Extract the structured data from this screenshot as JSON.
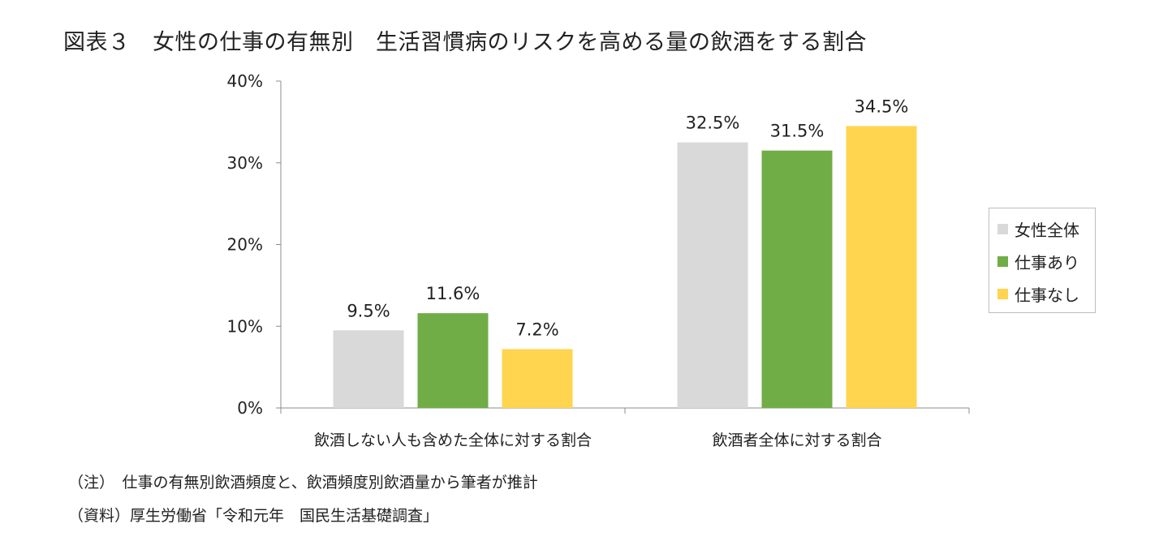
{
  "title": "図表３　女性の仕事の有無別　生活習慣病のリスクを高める量の飲酒をする割合",
  "notes": {
    "note": "（注）　仕事の有無別飲酒頻度と、飲酒頻度別飲酒量から筆者が推計",
    "source": "（資料）厚生労働省「令和元年　国民生活基礎調査」"
  },
  "colors": {
    "all_women": "#d9d9d9",
    "working": "#70ad47",
    "not_working": "#ffd44f",
    "axis": "#8c8c8c"
  },
  "chart_data": {
    "type": "bar",
    "categories": [
      "飲酒しない人も含めた全体に対する割合",
      "飲酒者全体に対する割合"
    ],
    "series": [
      {
        "name": "女性全体",
        "values": [
          9.5,
          32.5
        ],
        "value_labels": [
          "9.5%",
          "32.5%"
        ]
      },
      {
        "name": "仕事あり",
        "values": [
          11.6,
          31.5
        ],
        "value_labels": [
          "11.6%",
          "31.5%"
        ]
      },
      {
        "name": "仕事なし",
        "values": [
          7.2,
          34.5
        ],
        "value_labels": [
          "7.2%",
          "34.5%"
        ]
      }
    ],
    "ylim": [
      0,
      40
    ],
    "yticks": [
      0,
      10,
      20,
      30,
      40
    ],
    "ytick_labels": [
      "0%",
      "10%",
      "20%",
      "30%",
      "40%"
    ],
    "xlabel": "",
    "ylabel": "",
    "grid": false,
    "legend_position": "right"
  }
}
